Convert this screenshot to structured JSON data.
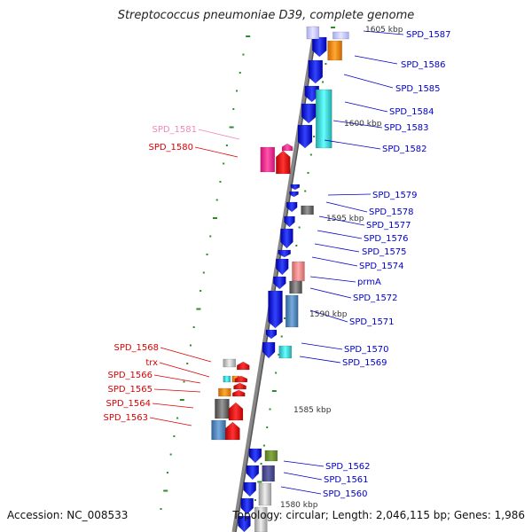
{
  "title": "Streptococcus pneumoniae D39, complete genome",
  "footer": {
    "accession": "Accession: NC_008533",
    "topology": "Topology: circular; Length: 2,046,115 bp; Genes: 1,986"
  },
  "colors": {
    "backbone": "#777777",
    "tick": "#2e8b2e",
    "right_label": "#0000cc",
    "left_label": "#dd0000",
    "pink_label": "#ee88bb"
  },
  "kbp_labels": [
    "1605 kbp",
    "1600 kbp",
    "1595 kbp",
    "1590 kbp",
    "1585 kbp",
    "1580 kbp"
  ],
  "right_labels": [
    "SPD_1587",
    "SPD_1586",
    "SPD_1585",
    "SPD_1584",
    "SPD_1583",
    "SPD_1582",
    "SPD_1579",
    "SPD_1578",
    "SPD_1577",
    "SPD_1576",
    "SPD_1575",
    "SPD_1574",
    "prmA",
    "SPD_1572",
    "SPD_1571",
    "SPD_1570",
    "SPD_1569",
    "SPD_1562",
    "SPD_1561",
    "SPD_1560"
  ],
  "left_labels": [
    "SPD_1581",
    "SPD_1580",
    "SPD_1568",
    "trx",
    "SPD_1566",
    "SPD_1565",
    "SPD_1564",
    "SPD_1563"
  ]
}
